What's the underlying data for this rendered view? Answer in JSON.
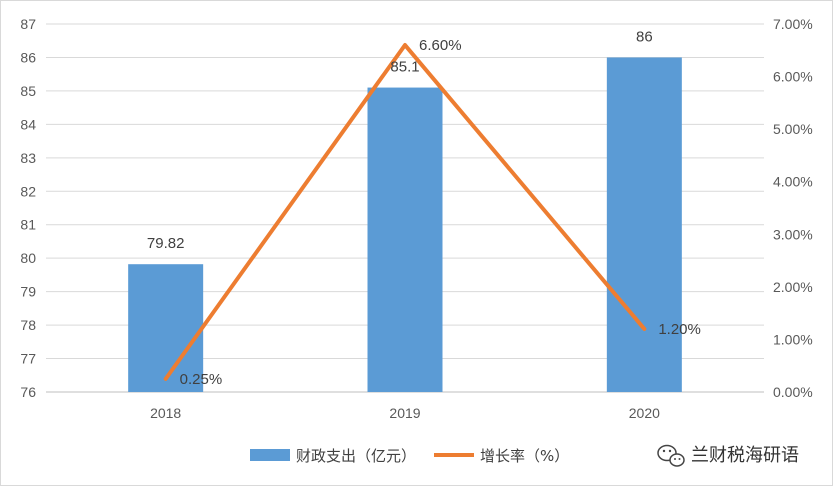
{
  "chart_data": {
    "type": "bar+line",
    "categories": [
      "2018",
      "2019",
      "2020"
    ],
    "series": [
      {
        "name": "财政支出（亿元）",
        "type": "bar",
        "axis": "left",
        "values": [
          79.82,
          85.1,
          86
        ],
        "labels": [
          "79.82",
          "85.1",
          "86"
        ],
        "color": "#5b9bd5"
      },
      {
        "name": "增长率（%）",
        "type": "line",
        "axis": "right",
        "values": [
          0.25,
          6.6,
          1.2
        ],
        "labels": [
          "0.25%",
          "6.60%",
          "1.20%"
        ],
        "color": "#ed7d31"
      }
    ],
    "left_axis": {
      "min": 76,
      "max": 87,
      "step": 1,
      "ticks": [
        "76",
        "77",
        "78",
        "79",
        "80",
        "81",
        "82",
        "83",
        "84",
        "85",
        "86",
        "87"
      ]
    },
    "right_axis": {
      "min": 0,
      "max": 7,
      "step": 1,
      "ticks": [
        "0.00%",
        "1.00%",
        "2.00%",
        "3.00%",
        "4.00%",
        "5.00%",
        "6.00%",
        "7.00%"
      ]
    },
    "grid": true,
    "legend_position": "bottom"
  },
  "watermark": {
    "text": "兰财税海研语",
    "icon": "wechat-icon"
  }
}
